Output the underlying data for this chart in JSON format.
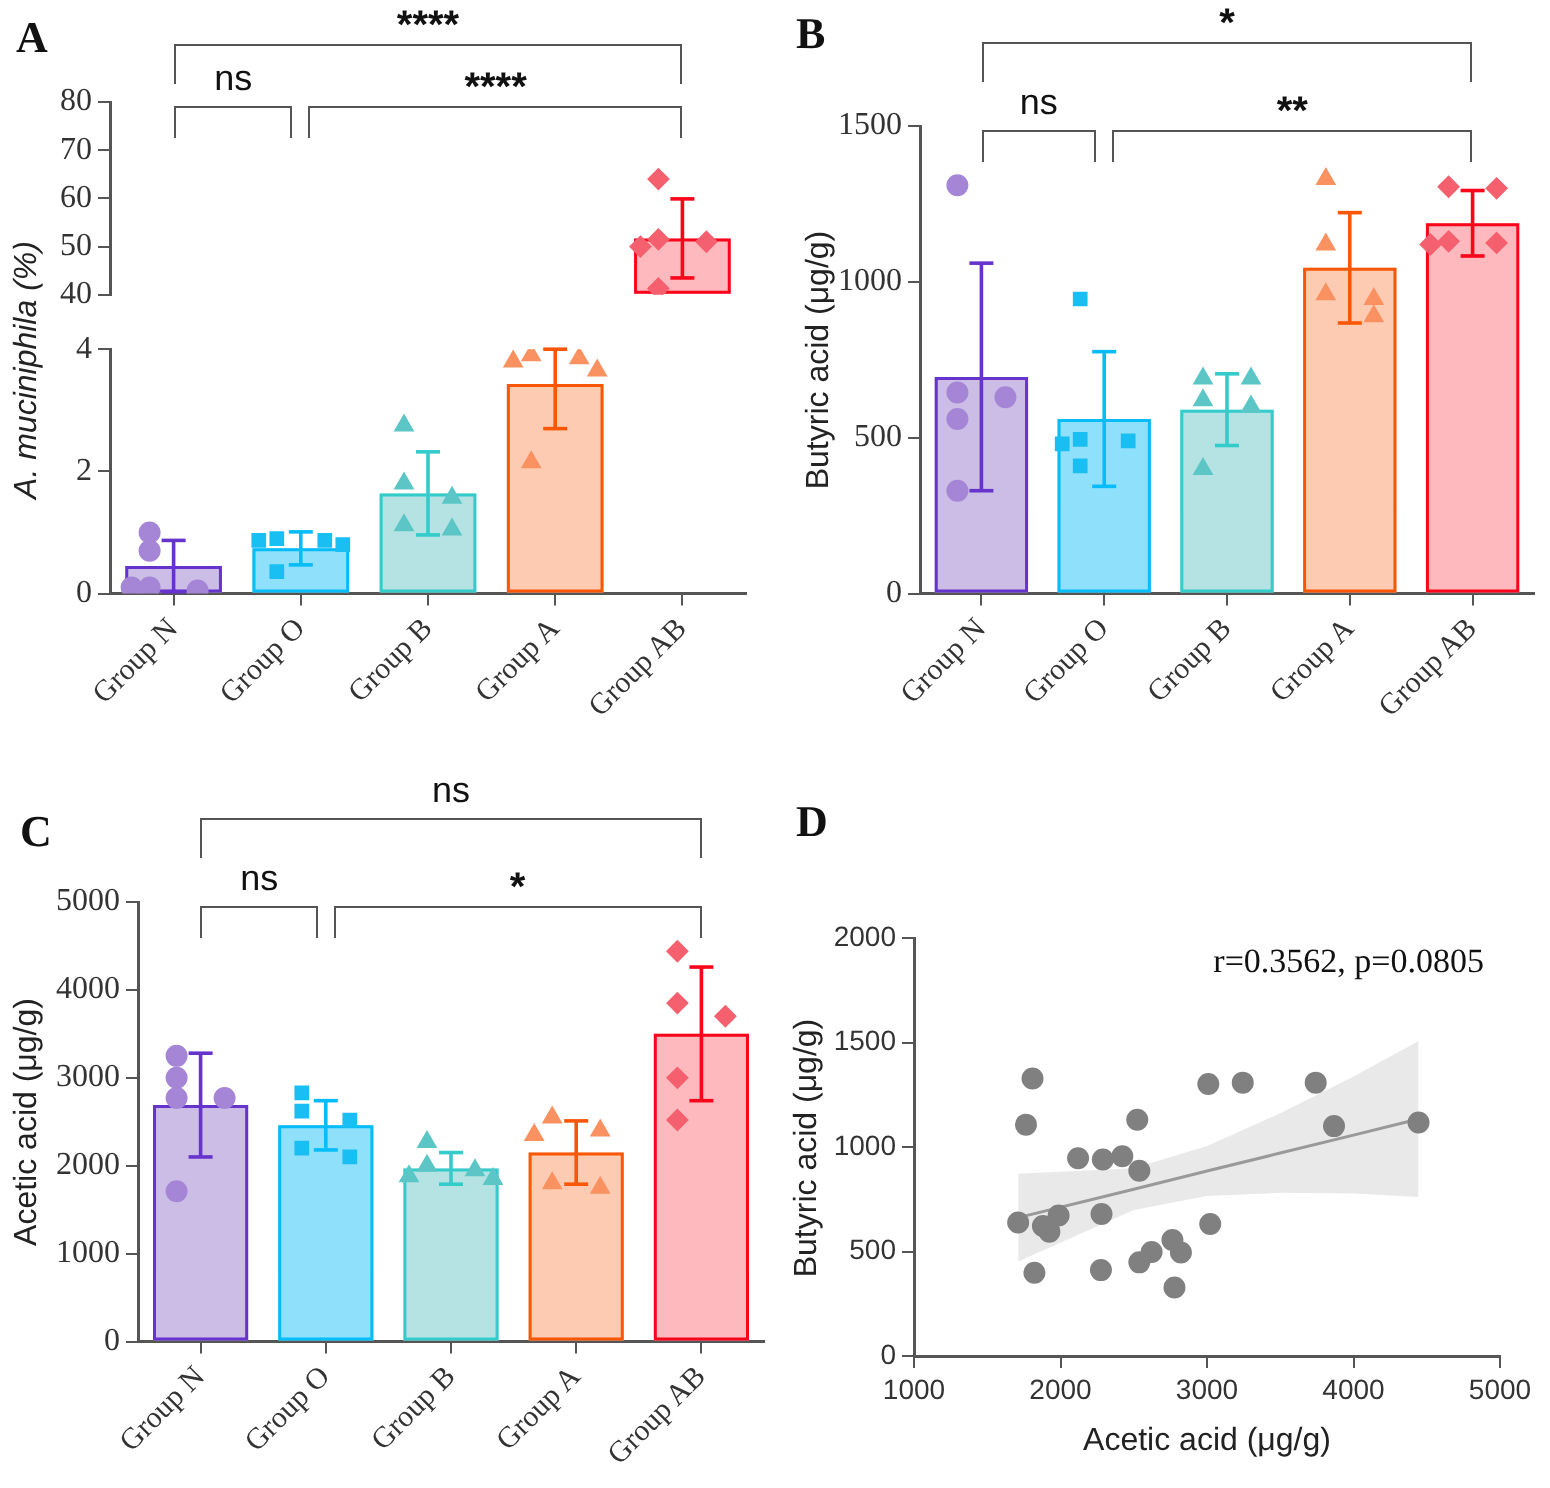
{
  "chart_data": [
    {
      "type": "bar",
      "title": "A",
      "ylabel": "A. muciniphila (%)",
      "categories": [
        "Group N",
        "Group O",
        "Group B",
        "Group A",
        "Group AB"
      ],
      "ylim": [
        40,
        80
      ],
      "yticks": [
        40,
        50,
        60,
        70,
        80
      ],
      "tick_labels": "y",
      "annotations": [
        "****",
        "ns",
        "****"
      ],
      "series": [
        {
          "values": [
            null,
            null,
            null,
            null,
            51.7
          ],
          "colors": [
            "#cbbde6",
            "#8fe0fa",
            "#b5e2e2",
            "#fdcbb2",
            "#feb9bf"
          ],
          "errors": [
            null,
            null,
            null,
            null,
            8.2
          ]
        },
        {
          "type": "scatter",
          "x": [
            "Group AB",
            "Group AB",
            "Group AB",
            "Group AB",
            "Group AB"
          ],
          "values": [
            64,
            51.5,
            51,
            50,
            41.3
          ],
          "color": "#f5606f",
          "marker": "diamond"
        }
      ]
    },
    {
      "type": "bar",
      "categories": [
        "Group N",
        "Group O",
        "Group B",
        "Group A",
        "Group AB"
      ],
      "ylim": [
        0,
        4
      ],
      "yticks": [
        0,
        2,
        4
      ],
      "series": [
        {
          "values": [
            0.45,
            0.74,
            1.64,
            3.43,
            null
          ],
          "colors": [
            "#cbbde6",
            "#8fe0fa",
            "#b5e2e2",
            "#fdcbb2",
            "#feb9bf"
          ],
          "errors": [
            0.42,
            0.27,
            0.68,
            [
              2.7,
              4.0
            ],
            null
          ]
        },
        {
          "type": "scatter",
          "x": [
            "Group N",
            "Group N",
            "Group N",
            "Group N",
            "Group N"
          ],
          "values": [
            1.0,
            0.7,
            0.1,
            0.05,
            0.1
          ],
          "color": "#a585d6",
          "marker": "circle"
        },
        {
          "type": "scatter",
          "x": [
            "Group O",
            "Group O",
            "Group O",
            "Group O",
            "Group O"
          ],
          "values": [
            0.9,
            0.87,
            0.87,
            0.8,
            0.36
          ],
          "color": "#19bff2",
          "marker": "square"
        },
        {
          "type": "scatter",
          "x": [
            "Group B",
            "Group B",
            "Group B",
            "Group B",
            "Group B"
          ],
          "values": [
            2.75,
            1.8,
            1.57,
            1.12,
            1.05
          ],
          "color": "#5cc6c6",
          "marker": "triangle"
        },
        {
          "type": "scatter",
          "x": [
            "Group A",
            "Group A",
            "Group A",
            "Group A",
            "Group A"
          ],
          "values": [
            3.9,
            3.85,
            3.8,
            3.65,
            2.15
          ],
          "color": "#fa9160",
          "marker": "triangle"
        }
      ]
    },
    {
      "type": "bar",
      "title": "B",
      "ylabel": "Butyric acid (μg/g)",
      "categories": [
        "Group N",
        "Group O",
        "Group B",
        "Group A",
        "Group AB"
      ],
      "ylim": [
        0,
        1500
      ],
      "yticks": [
        0,
        500,
        1000,
        1500
      ],
      "annotations": [
        "*",
        "ns",
        "**"
      ],
      "series": [
        {
          "values": [
            695,
            560,
            590,
            1045,
            1188
          ],
          "colors": [
            "#cbbde6",
            "#8fe0fa",
            "#b5e2e2",
            "#fdcbb2",
            "#feb9bf"
          ],
          "errors": [
            365,
            216,
            115,
            177,
            105
          ]
        },
        {
          "type": "scatter",
          "x": [
            "Group N",
            "Group N",
            "Group N",
            "Group N",
            "Group N"
          ],
          "values": [
            1310,
            645,
            630,
            560,
            330
          ],
          "color": "#a585d6",
          "marker": "circle"
        },
        {
          "type": "scatter",
          "x": [
            "Group O",
            "Group O",
            "Group O",
            "Group O",
            "Group O"
          ],
          "values": [
            945,
            495,
            490,
            480,
            410
          ],
          "color": "#19bff2",
          "marker": "square"
        },
        {
          "type": "scatter",
          "x": [
            "Group B",
            "Group B",
            "Group B",
            "Group B",
            "Group B"
          ],
          "values": [
            690,
            690,
            620,
            600,
            400
          ],
          "color": "#5cc6c6",
          "marker": "triangle"
        },
        {
          "type": "scatter",
          "x": [
            "Group A",
            "Group A",
            "Group A",
            "Group A",
            "Group A"
          ],
          "values": [
            1330,
            1120,
            960,
            945,
            890
          ],
          "color": "#fa9160",
          "marker": "triangle"
        },
        {
          "type": "scatter",
          "x": [
            "Group AB",
            "Group AB",
            "Group AB",
            "Group AB",
            "Group AB"
          ],
          "values": [
            1305,
            1300,
            1130,
            1125,
            1120
          ],
          "color": "#f5606f",
          "marker": "diamond"
        }
      ]
    },
    {
      "type": "bar",
      "title": "C",
      "ylabel": "Acetic acid (μg/g)",
      "categories": [
        "Group N",
        "Group O",
        "Group B",
        "Group A",
        "Group AB"
      ],
      "ylim": [
        0,
        5000
      ],
      "yticks": [
        0,
        1000,
        2000,
        3000,
        4000,
        5000
      ],
      "annotations": [
        "ns",
        "ns",
        "*"
      ],
      "series": [
        {
          "values": [
            2690,
            2460,
            1970,
            2150,
            3500
          ],
          "colors": [
            "#cbbde6",
            "#8fe0fa",
            "#b5e2e2",
            "#fdcbb2",
            "#feb9bf"
          ],
          "errors": [
            590,
            280,
            180,
            360,
            760
          ]
        },
        {
          "type": "scatter",
          "x": [
            "Group N",
            "Group N",
            "Group N",
            "Group N",
            "Group N"
          ],
          "values": [
            3250,
            3000,
            2770,
            2770,
            1710
          ],
          "color": "#a585d6",
          "marker": "circle"
        },
        {
          "type": "scatter",
          "x": [
            "Group O",
            "Group O",
            "Group O",
            "Group O",
            "Group O"
          ],
          "values": [
            2830,
            2620,
            2520,
            2200,
            2100
          ],
          "color": "#19bff2",
          "marker": "square"
        },
        {
          "type": "scatter",
          "x": [
            "Group B",
            "Group B",
            "Group B",
            "Group B",
            "Group B"
          ],
          "values": [
            2270,
            2000,
            1950,
            1880,
            1850
          ],
          "color": "#5cc6c6",
          "marker": "triangle"
        },
        {
          "type": "scatter",
          "x": [
            "Group A",
            "Group A",
            "Group A",
            "Group A",
            "Group A"
          ],
          "values": [
            2550,
            2400,
            2350,
            1800,
            1750
          ],
          "color": "#fa9160",
          "marker": "triangle"
        },
        {
          "type": "scatter",
          "x": [
            "Group AB",
            "Group AB",
            "Group AB",
            "Group AB",
            "Group AB"
          ],
          "values": [
            4440,
            3850,
            3700,
            3000,
            2520
          ],
          "color": "#f5606f",
          "marker": "diamond"
        }
      ]
    },
    {
      "type": "scatter",
      "title": "D",
      "xlabel": "Acetic acid (μg/g)",
      "ylabel": "Butyric acid (μg/g)",
      "xlim": [
        1000,
        5000
      ],
      "xticks": [
        1000,
        2000,
        3000,
        4000,
        5000
      ],
      "ylim": [
        0,
        2000
      ],
      "yticks": [
        0,
        500,
        1000,
        1500,
        2000
      ],
      "annotations": [
        "r=0.3562, p=0.0805"
      ],
      "series": [
        {
          "color": "#808080",
          "marker": "circle",
          "x": [
            1711,
            1764,
            1809,
            1822,
            1880,
            1924,
            1987,
            2120,
            2276,
            2289,
            2280,
            2422,
            2524,
            2538,
            2538,
            2622,
            2764,
            2778,
            2822,
            3009,
            3022,
            3244,
            3742,
            3867,
            4444
          ],
          "values": [
            639,
            1107,
            1328,
            398,
            622,
            595,
            672,
            946,
            411,
            940,
            679,
            956,
            1130,
            886,
            448,
            498,
            555,
            328,
            495,
            1301,
            632,
            1308,
            1308,
            1100,
            1117
          ]
        },
        {
          "type": "line",
          "color": "#999999",
          "x": [
            1711,
            2500,
            3000,
            3500,
            4000,
            4444
          ],
          "values": [
            662,
            798,
            885,
            971,
            1057,
            1134
          ],
          "lower": [
            452,
            698,
            765,
            781,
            777,
            761
          ],
          "upper": [
            872,
            898,
            1005,
            1161,
            1337,
            1507
          ]
        }
      ]
    }
  ]
}
